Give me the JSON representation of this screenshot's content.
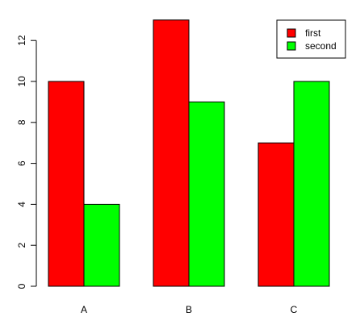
{
  "chart_data": {
    "type": "bar",
    "categories": [
      "A",
      "B",
      "C"
    ],
    "series": [
      {
        "name": "first",
        "values": [
          10,
          13,
          7
        ],
        "color": "#ff0000"
      },
      {
        "name": "second",
        "values": [
          4,
          9,
          10
        ],
        "color": "#00ff00"
      }
    ],
    "title": "",
    "xlabel": "",
    "ylabel": "",
    "ylim": [
      0,
      13
    ],
    "yticks": [
      0,
      2,
      4,
      6,
      8,
      10,
      12
    ],
    "grid": false,
    "legend": "top-right"
  }
}
